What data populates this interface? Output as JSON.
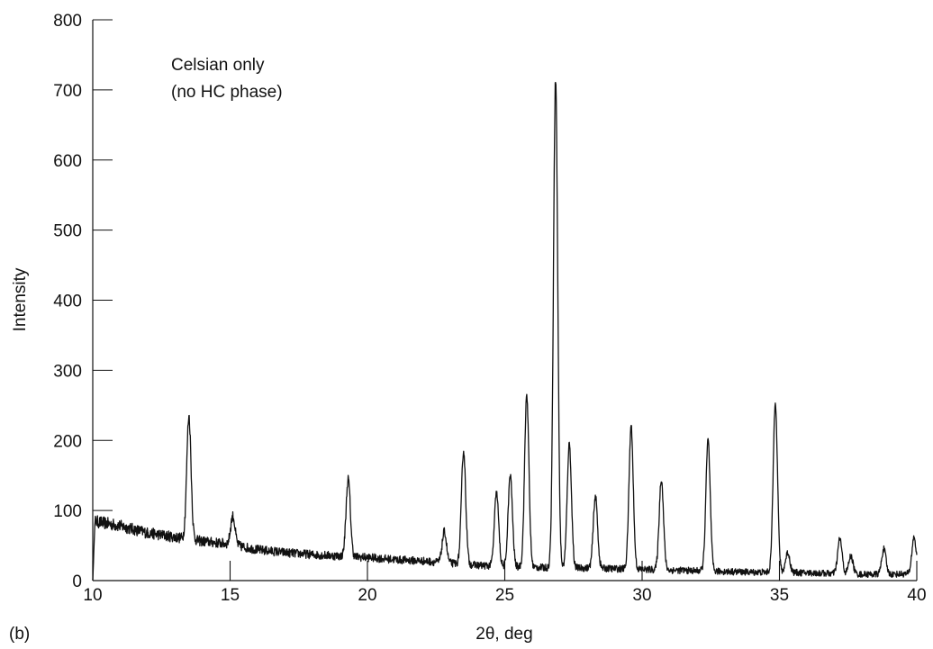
{
  "chart_data": {
    "type": "line",
    "panel_label": "(b)",
    "title": "",
    "xlabel": "2θ, deg",
    "ylabel": "Intensity",
    "xlim": [
      10,
      40
    ],
    "ylim": [
      0,
      800
    ],
    "xticks": [
      10,
      15,
      20,
      25,
      30,
      35,
      40
    ],
    "yticks": [
      0,
      100,
      200,
      300,
      400,
      500,
      600,
      700,
      800
    ],
    "annotation": [
      "Celsian only",
      "(no HC phase)"
    ],
    "grid": false,
    "baseline": [
      [
        10,
        85
      ],
      [
        11,
        78
      ],
      [
        12,
        68
      ],
      [
        13,
        62
      ],
      [
        14,
        56
      ],
      [
        15,
        52
      ],
      [
        16,
        44
      ],
      [
        17,
        40
      ],
      [
        18,
        37
      ],
      [
        19,
        35
      ],
      [
        20,
        33
      ],
      [
        21,
        30
      ],
      [
        22,
        28
      ],
      [
        23,
        25
      ],
      [
        24,
        22
      ],
      [
        25,
        20
      ],
      [
        26,
        19
      ],
      [
        27,
        18
      ],
      [
        28,
        18
      ],
      [
        29,
        17
      ],
      [
        30,
        16
      ],
      [
        31,
        15
      ],
      [
        32,
        14
      ],
      [
        33,
        13
      ],
      [
        34,
        12
      ],
      [
        35,
        12
      ],
      [
        36,
        11
      ],
      [
        37,
        10
      ],
      [
        38,
        9
      ],
      [
        39,
        9
      ],
      [
        40,
        10
      ]
    ],
    "peaks": [
      {
        "x": 13.5,
        "y": 235
      },
      {
        "x": 15.1,
        "y": 92
      },
      {
        "x": 19.3,
        "y": 145
      },
      {
        "x": 22.8,
        "y": 70
      },
      {
        "x": 23.5,
        "y": 185
      },
      {
        "x": 24.7,
        "y": 125
      },
      {
        "x": 25.2,
        "y": 150
      },
      {
        "x": 25.8,
        "y": 265
      },
      {
        "x": 26.85,
        "y": 715
      },
      {
        "x": 27.35,
        "y": 195
      },
      {
        "x": 28.3,
        "y": 120
      },
      {
        "x": 29.6,
        "y": 220
      },
      {
        "x": 30.7,
        "y": 145
      },
      {
        "x": 32.4,
        "y": 200
      },
      {
        "x": 34.85,
        "y": 255
      },
      {
        "x": 35.3,
        "y": 40
      },
      {
        "x": 37.2,
        "y": 60
      },
      {
        "x": 37.6,
        "y": 35
      },
      {
        "x": 38.8,
        "y": 45
      },
      {
        "x": 39.9,
        "y": 62
      }
    ]
  }
}
